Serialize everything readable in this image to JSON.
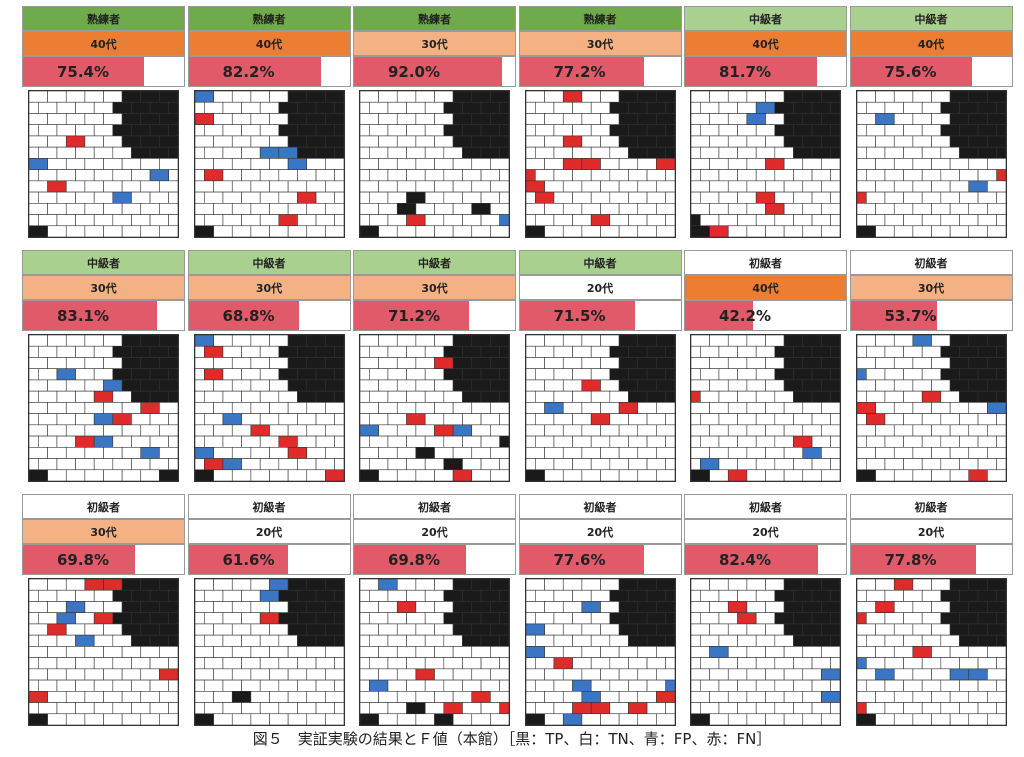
{
  "caption": "図５　実証実験の結果とＦ値（本館）［黒：TP、白：TN、青：FP、赤：FN］",
  "legend_colors": {
    "TP": "#1a1a1a",
    "TN": "#ffffff",
    "FP": "#3b76c4",
    "FN": "#e02b2b"
  },
  "level_colors": {
    "熟練者": "#6faa4d",
    "中級者": "#a9d08e",
    "初級者": "#ffffff"
  },
  "age_colors": {
    "40代": "#ed7d31",
    "30代": "#f4b183",
    "20代": "#ffffff"
  },
  "panels": [
    {
      "level": "熟練者",
      "age": "40代",
      "score": "75.4%",
      "fill": 0.754
    },
    {
      "level": "熟練者",
      "age": "40代",
      "score": "82.2%",
      "fill": 0.822
    },
    {
      "level": "熟練者",
      "age": "30代",
      "score": "92.0%",
      "fill": 0.92
    },
    {
      "level": "熟練者",
      "age": "30代",
      "score": "77.2%",
      "fill": 0.772
    },
    {
      "level": "中級者",
      "age": "40代",
      "score": "81.7%",
      "fill": 0.817
    },
    {
      "level": "中級者",
      "age": "40代",
      "score": "75.6%",
      "fill": 0.756
    },
    {
      "level": "中級者",
      "age": "30代",
      "score": "83.1%",
      "fill": 0.831
    },
    {
      "level": "中級者",
      "age": "30代",
      "score": "68.8%",
      "fill": 0.688
    },
    {
      "level": "中級者",
      "age": "30代",
      "score": "71.2%",
      "fill": 0.712
    },
    {
      "level": "中級者",
      "age": "20代",
      "score": "71.5%",
      "fill": 0.715
    },
    {
      "level": "初級者",
      "age": "40代",
      "score": "42.2%",
      "fill": 0.422
    },
    {
      "level": "初級者",
      "age": "30代",
      "score": "53.7%",
      "fill": 0.537
    },
    {
      "level": "初級者",
      "age": "30代",
      "score": "69.8%",
      "fill": 0.698
    },
    {
      "level": "初級者",
      "age": "20代",
      "score": "61.6%",
      "fill": 0.616
    },
    {
      "level": "初級者",
      "age": "20代",
      "score": "69.8%",
      "fill": 0.698
    },
    {
      "level": "初級者",
      "age": "20代",
      "score": "77.6%",
      "fill": 0.776
    },
    {
      "level": "初級者",
      "age": "20代",
      "score": "82.4%",
      "fill": 0.824
    },
    {
      "level": "初級者",
      "age": "20代",
      "score": "77.8%",
      "fill": 0.778
    }
  ]
}
